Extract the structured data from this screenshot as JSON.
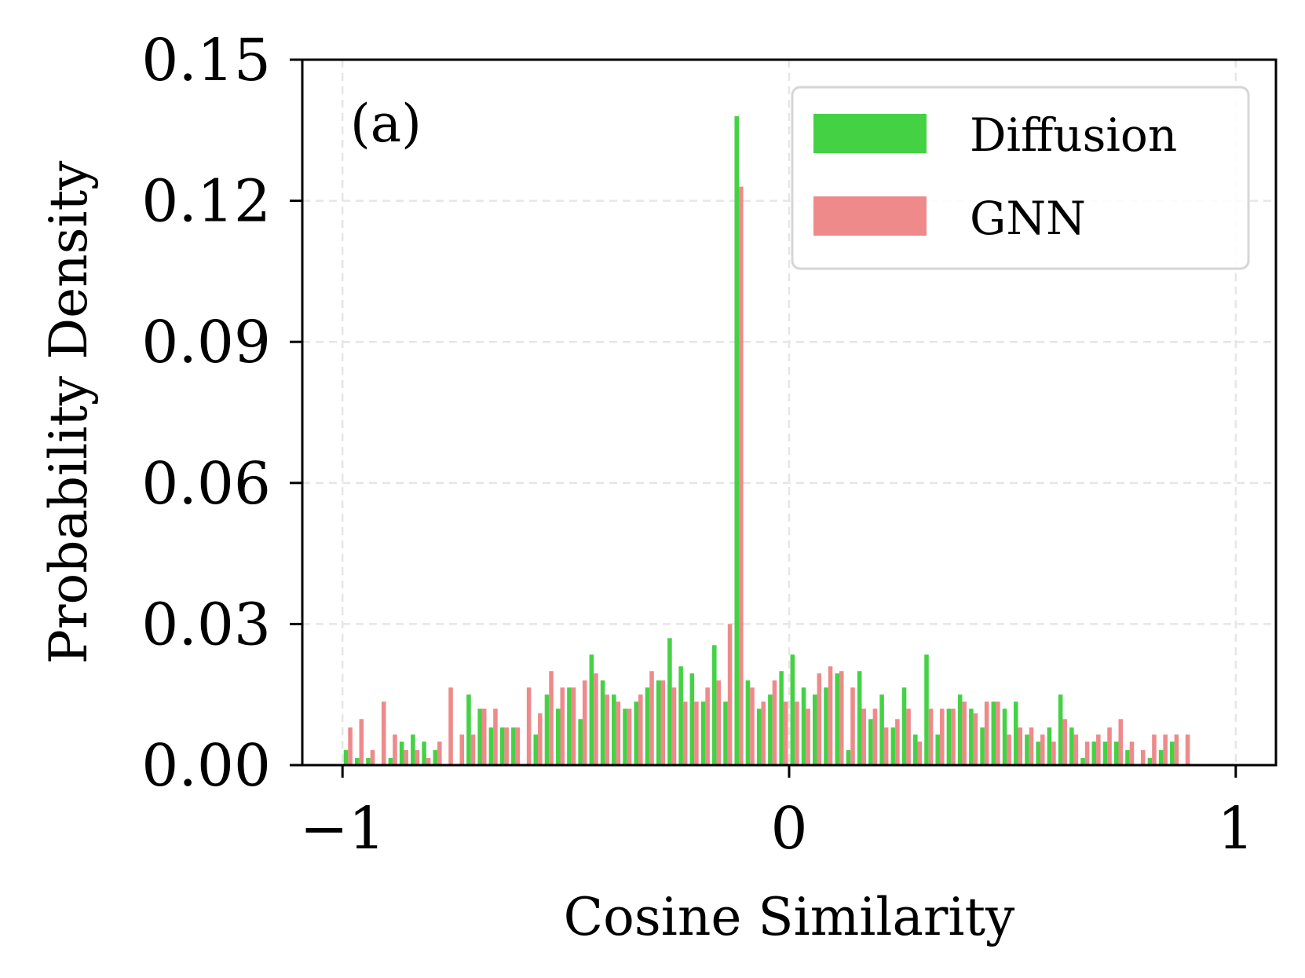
{
  "chart_data": {
    "type": "bar",
    "panel_label": "(a)",
    "xlabel": "Cosine Similarity",
    "ylabel": "Probability Density",
    "xlim": [
      -1.09,
      1.09
    ],
    "ylim": [
      0,
      0.15
    ],
    "xticks": [
      -1,
      0,
      1
    ],
    "xtick_labels": [
      "−1",
      "0",
      "1"
    ],
    "yticks": [
      0,
      0.03,
      0.06,
      0.09,
      0.12,
      0.15
    ],
    "ytick_labels": [
      "0.00",
      "0.03",
      "0.06",
      "0.09",
      "0.12",
      "0.15"
    ],
    "grid": true,
    "legend_position": "top-right",
    "bin_start": -1,
    "bin_width": 0.025,
    "series": [
      {
        "name": "Diffusion",
        "color": "#44d244",
        "values": [
          0.0032,
          0.0015,
          0.0015,
          0.0,
          0.0015,
          0.005,
          0.0065,
          0.005,
          0.0032,
          0.0,
          0.0,
          0.015,
          0.012,
          0.008,
          0.008,
          0.008,
          0.0,
          0.0065,
          0.015,
          0.012,
          0.0165,
          0.0098,
          0.0235,
          0.018,
          0.015,
          0.012,
          0.0135,
          0.0165,
          0.018,
          0.027,
          0.021,
          0.0195,
          0.0135,
          0.0255,
          0.0135,
          0.138,
          0.018,
          0.012,
          0.015,
          0.02,
          0.0235,
          0.0165,
          0.015,
          0.0165,
          0.0195,
          0.0032,
          0.02,
          0.0098,
          0.015,
          0.008,
          0.0165,
          0.0065,
          0.0235,
          0.0065,
          0.012,
          0.015,
          0.012,
          0.008,
          0.0135,
          0.012,
          0.0135,
          0.0065,
          0.005,
          0.008,
          0.015,
          0.008,
          0.0015,
          0.005,
          0.005,
          0.005,
          0.0032,
          0.0,
          0.0015,
          0.0032,
          0.005,
          0.0
        ]
      },
      {
        "name": "GNN",
        "color": "#ee8a8a",
        "values": [
          0.008,
          0.0098,
          0.0032,
          0.0135,
          0.0065,
          0.0032,
          0.0032,
          0.0015,
          0.005,
          0.0165,
          0.0065,
          0.0065,
          0.012,
          0.012,
          0.008,
          0.008,
          0.0165,
          0.011,
          0.02,
          0.0165,
          0.0165,
          0.018,
          0.0195,
          0.015,
          0.0135,
          0.012,
          0.015,
          0.02,
          0.018,
          0.0165,
          0.0135,
          0.0135,
          0.0165,
          0.018,
          0.03,
          0.123,
          0.0165,
          0.0135,
          0.018,
          0.0135,
          0.0135,
          0.012,
          0.0195,
          0.021,
          0.02,
          0.0165,
          0.012,
          0.012,
          0.008,
          0.0098,
          0.012,
          0.005,
          0.012,
          0.012,
          0.012,
          0.0135,
          0.011,
          0.0135,
          0.0135,
          0.0065,
          0.008,
          0.008,
          0.0065,
          0.005,
          0.0098,
          0.0065,
          0.005,
          0.0065,
          0.008,
          0.0098,
          0.005,
          0.0032,
          0.0065,
          0.0065,
          0.0065,
          0.0065
        ]
      }
    ]
  }
}
